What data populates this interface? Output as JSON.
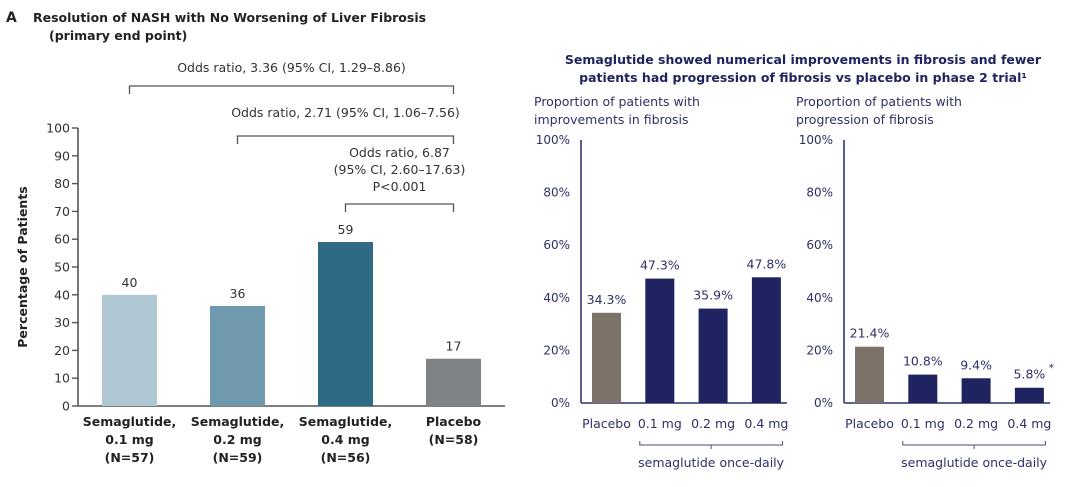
{
  "panel_a": {
    "letter": "A",
    "title_line1": "Resolution of NASH with No Worsening of Liver Fibrosis",
    "title_line2": "(primary end point)"
  },
  "panel_b": {
    "heading_line1": "Semaglutide showed numerical improvements in fibrosis and fewer",
    "heading_line2": "patients had progression of fibrosis vs placebo in phase 2 trial¹"
  },
  "chart_data": [
    {
      "type": "bar",
      "title": "Resolution of NASH with No Worsening of Liver Fibrosis (primary end point)",
      "ylabel": "Percentage of Patients",
      "xlabel": "",
      "ylim": [
        0,
        100
      ],
      "yticks": [
        "0",
        "10",
        "20",
        "30",
        "40",
        "50",
        "60",
        "70",
        "80",
        "90",
        "100"
      ],
      "grid": false,
      "categories": [
        {
          "line1": "Semaglutide,",
          "line2": "0.1 mg",
          "line3": "(N=57)"
        },
        {
          "line1": "Semaglutide,",
          "line2": "0.2 mg",
          "line3": "(N=59)"
        },
        {
          "line1": "Semaglutide,",
          "line2": "0.4 mg",
          "line3": "(N=56)"
        },
        {
          "line1": "Placebo",
          "line2": "(N=58)",
          "line3": ""
        }
      ],
      "values": [
        40,
        36,
        59,
        17
      ],
      "value_labels": [
        "40",
        "36",
        "59",
        "17"
      ],
      "colors": [
        "#b0c8d4",
        "#6f9aae",
        "#2f6a84",
        "#7f8385"
      ],
      "annotations": [
        {
          "text_lines": [
            "Odds ratio, 3.36 (95% CI, 1.29–8.86)"
          ],
          "from_category": 0,
          "to_category": 3
        },
        {
          "text_lines": [
            "Odds ratio, 2.71 (95% CI, 1.06–7.56)"
          ],
          "from_category": 1,
          "to_category": 3
        },
        {
          "text_lines": [
            "Odds ratio, 6.87",
            "(95% CI, 2.60–17.63)",
            "P<0.001"
          ],
          "from_category": 2,
          "to_category": 3
        }
      ]
    },
    {
      "type": "bar",
      "title_line1": "Proportion of patients with",
      "title_line2": "improvements in fibrosis",
      "ylim": [
        0,
        100
      ],
      "yticks": [
        "0%",
        "20%",
        "40%",
        "60%",
        "80%",
        "100%"
      ],
      "grid": false,
      "categories": [
        "Placebo",
        "0.1 mg",
        "0.2 mg",
        "0.4 mg"
      ],
      "group_label": "semaglutide once-daily",
      "values": [
        34.3,
        47.3,
        35.9,
        47.8
      ],
      "value_labels": [
        "34.3%",
        "47.3%",
        "35.9%",
        "47.8%"
      ],
      "colors": [
        "#7d7268",
        "#1f2460",
        "#1f2460",
        "#1f2460"
      ]
    },
    {
      "type": "bar",
      "title_line1": "Proportion of patients with",
      "title_line2": "progression of fibrosis",
      "ylim": [
        0,
        100
      ],
      "yticks": [
        "0%",
        "20%",
        "40%",
        "60%",
        "80%",
        "100%"
      ],
      "grid": false,
      "categories": [
        "Placebo",
        "0.1 mg",
        "0.2 mg",
        "0.4 mg"
      ],
      "group_label": "semaglutide once-daily",
      "values": [
        21.4,
        10.8,
        9.4,
        5.8
      ],
      "value_labels": [
        "21.4%",
        "10.8%",
        "9.4%",
        "5.8%"
      ],
      "value_marks": [
        "",
        "",
        "",
        "*"
      ],
      "colors": [
        "#7d7268",
        "#1f2460",
        "#1f2460",
        "#1f2460"
      ]
    }
  ]
}
